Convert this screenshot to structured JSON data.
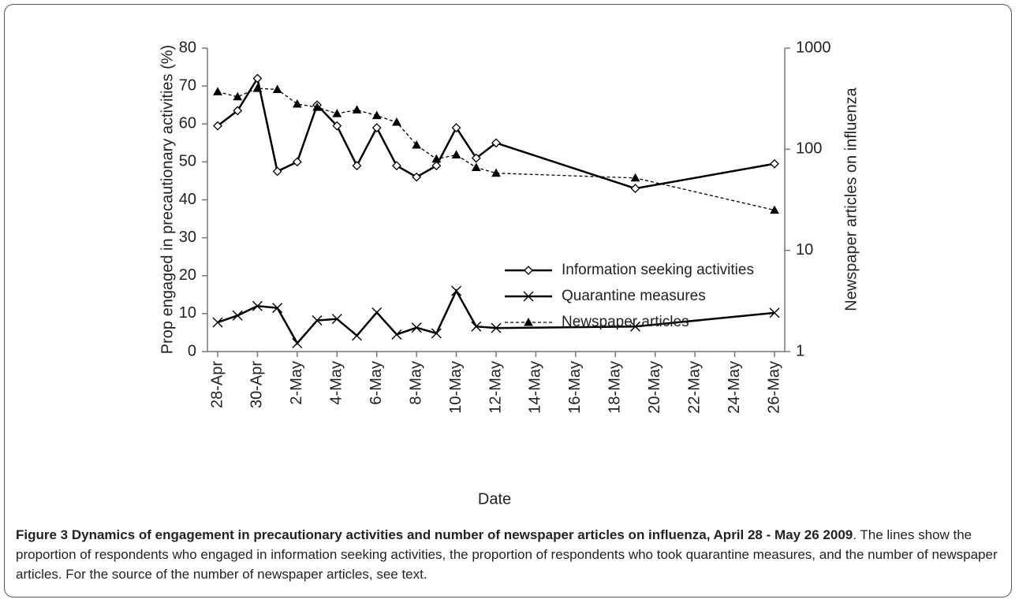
{
  "chart_data": {
    "type": "line",
    "x_label": "Date",
    "y_label": "Prop engaged in precautionary activities (%)",
    "y2_label": "Newspaper articles on influenza",
    "x": [
      "28-Apr",
      "29-Apr",
      "30-Apr",
      "1-May",
      "2-May",
      "3-May",
      "4-May",
      "5-May",
      "6-May",
      "7-May",
      "8-May",
      "9-May",
      "10-May",
      "11-May",
      "12-May",
      "19-May",
      "26-May"
    ],
    "xticks": [
      "28-Apr",
      "30-Apr",
      "2-May",
      "4-May",
      "6-May",
      "8-May",
      "10-May",
      "12-May",
      "14-May",
      "16-May",
      "18-May",
      "20-May",
      "22-May",
      "24-May",
      "26-May"
    ],
    "ylim": [
      0,
      80
    ],
    "yticks": [
      0,
      10,
      20,
      30,
      40,
      50,
      60,
      70,
      80
    ],
    "y2lim": [
      1,
      1000
    ],
    "y2ticks": [
      1,
      10,
      100,
      1000
    ],
    "y2_log": true,
    "series": [
      {
        "name": "Information seeking activities",
        "color": "#000000",
        "marker": "diamond",
        "line_style": "solid",
        "values": [
          59.5,
          63.5,
          72,
          47.5,
          50,
          65,
          59.5,
          49,
          59,
          49,
          46,
          49,
          59,
          51,
          55,
          43,
          49.5
        ]
      },
      {
        "name": "Quarantine measures",
        "color": "#000000",
        "marker": "cross",
        "line_style": "solid",
        "values": [
          7.7,
          9.5,
          12,
          11.5,
          2.2,
          8.2,
          8.6,
          4.2,
          10.3,
          4.5,
          6.3,
          4.8,
          16,
          6.6,
          6.2,
          6.6,
          10.2
        ]
      },
      {
        "name": "Newspaper articles",
        "color": "#000000",
        "marker": "triangle",
        "line_style": "dashed",
        "axis": "y2",
        "values": [
          370,
          330,
          400,
          390,
          280,
          260,
          225,
          245,
          215,
          185,
          110,
          80,
          88,
          66,
          58,
          52,
          25
        ]
      }
    ]
  },
  "caption": {
    "title": "Figure 3 Dynamics of engagement in precautionary activities and number of newspaper articles on influenza, April 28 - May 26 2009",
    "text": ". The lines show the proportion of respondents who engaged in information seeking activities, the proportion of respondents who took quarantine measures, and the number of newspaper articles. For the source of the number of newspaper articles, see text."
  }
}
